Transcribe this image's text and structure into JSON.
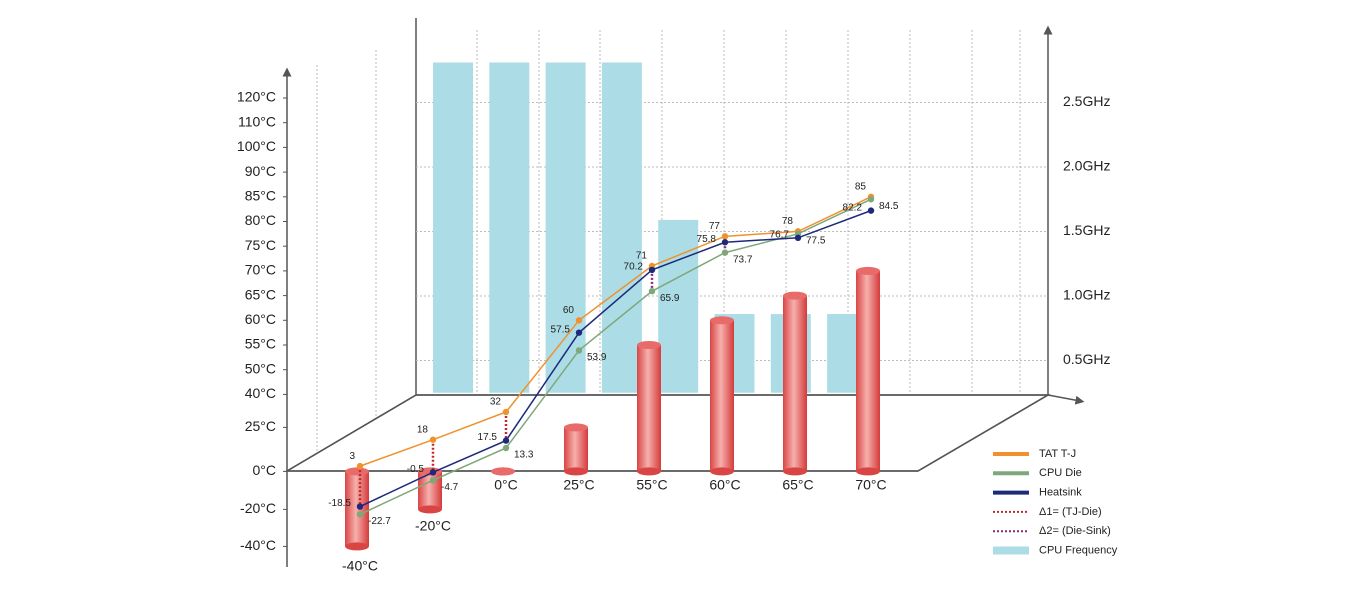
{
  "chart_data": {
    "type": "line",
    "categories": [
      "-40°C",
      "-20°C",
      "0°C",
      "25°C",
      "55°C",
      "60°C",
      "65°C",
      "70°C"
    ],
    "series": [
      {
        "name": "TAT T-J",
        "color": "#f0912e",
        "values": [
          3,
          18,
          32,
          60,
          71,
          77,
          78,
          85
        ]
      },
      {
        "name": "CPU Die",
        "color": "#7fa87a",
        "values": [
          -22.7,
          -4.7,
          13.3,
          53.9,
          65.9,
          73.7,
          77.5,
          84.5
        ]
      },
      {
        "name": "Heatsink",
        "color": "#1d2a7a",
        "values": [
          -18.5,
          -0.5,
          17.5,
          57.5,
          70.2,
          75.8,
          76.7,
          82.2
        ]
      },
      {
        "name": "Δ1= (TJ-Die)",
        "color": "#c0282d",
        "style": "dotted"
      },
      {
        "name": "Δ2= (Die-Sink)",
        "color": "#8b2a7a",
        "style": "dotted"
      },
      {
        "name": "CPU Frequency",
        "color": "#acdde6",
        "axis": "y2",
        "values": [
          2.81,
          2.81,
          2.81,
          2.81,
          1.59,
          0.86,
          0.86,
          0.86
        ]
      }
    ],
    "cylinders": {
      "color": "#e25353",
      "values": [
        -40,
        -20,
        0,
        25,
        55,
        60,
        65,
        70
      ]
    },
    "ylim": [
      -40,
      120
    ],
    "yticks": [
      {
        "value": 120,
        "label": "120°C"
      },
      {
        "value": 110,
        "label": "110°C"
      },
      {
        "value": 100,
        "label": "100°C"
      },
      {
        "value": 90,
        "label": "90°C"
      },
      {
        "value": 85,
        "label": "85°C"
      },
      {
        "value": 80,
        "label": "80°C"
      },
      {
        "value": 75,
        "label": "75°C"
      },
      {
        "value": 70,
        "label": "70°C"
      },
      {
        "value": 65,
        "label": "65°C"
      },
      {
        "value": 60,
        "label": "60°C"
      },
      {
        "value": 55,
        "label": "55°C"
      },
      {
        "value": 50,
        "label": "50°C"
      },
      {
        "value": 40,
        "label": "40°C"
      },
      {
        "value": 25,
        "label": "25°C"
      },
      {
        "value": 0,
        "label": "0°C"
      },
      {
        "value": -20,
        "label": "-20°C"
      },
      {
        "value": -40,
        "label": "-40°C"
      }
    ],
    "y2lim": [
      0.25,
      3.0
    ],
    "y2ticks": [
      {
        "value": 0.5,
        "label": "0.5GHz"
      },
      {
        "value": 1.0,
        "label": "1.0GHz"
      },
      {
        "value": 1.5,
        "label": "1.5GHz"
      },
      {
        "value": 2.0,
        "label": "2.0GHz"
      },
      {
        "value": 2.5,
        "label": "2.5GHz"
      }
    ],
    "grid": true
  }
}
